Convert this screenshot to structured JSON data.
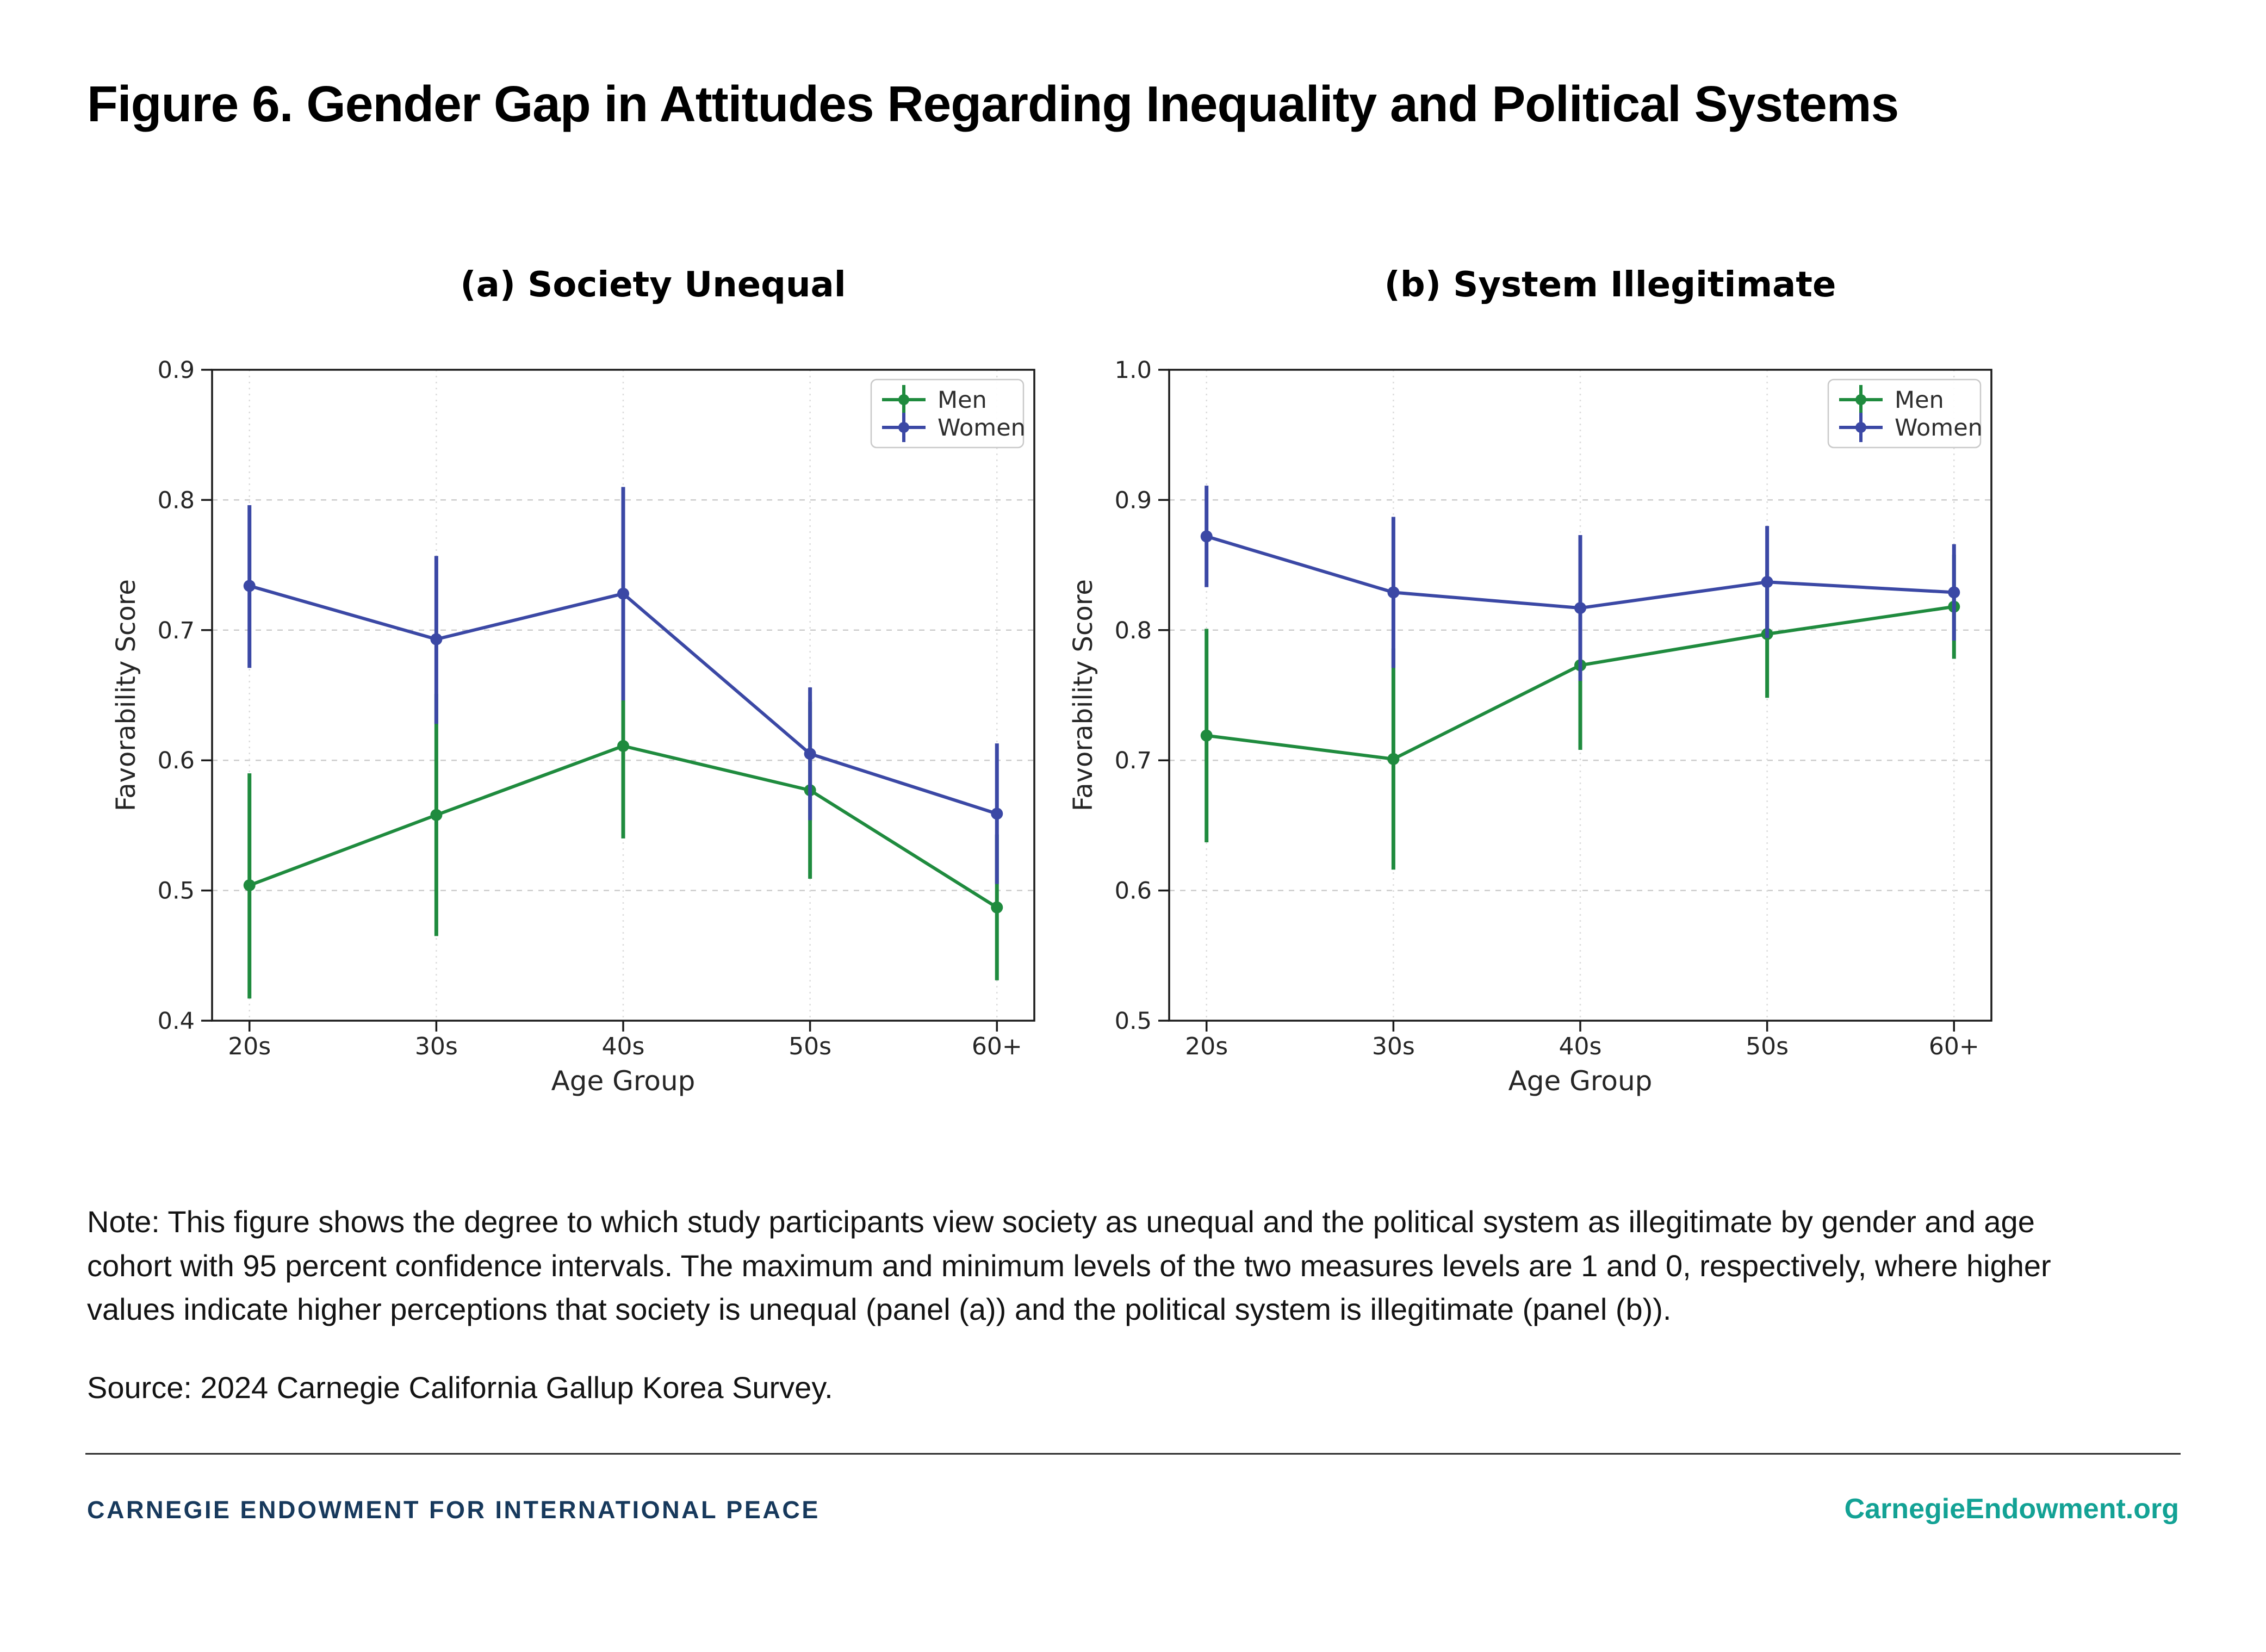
{
  "header": {
    "title": "Figure 6. Gender Gap in Attitudes Regarding Inequality and Political Systems"
  },
  "chart_data": [
    {
      "type": "line",
      "panel_label": "(a) Society Unequal",
      "xlabel": "Age Group",
      "ylabel": "Favorability Score",
      "ylim": [
        0.4,
        0.9
      ],
      "yticks": [
        0.4,
        0.5,
        0.6,
        0.7,
        0.8,
        0.9
      ],
      "categories": [
        "20s",
        "30s",
        "40s",
        "50s",
        "60+"
      ],
      "grid": true,
      "legend_position": "upper right",
      "series": [
        {
          "name": "Men",
          "color": "#1f8b3e",
          "values": [
            0.504,
            0.558,
            0.611,
            0.577,
            0.487
          ],
          "ci_low": [
            0.417,
            0.465,
            0.54,
            0.509,
            0.431
          ],
          "ci_high": [
            0.59,
            0.651,
            0.682,
            0.645,
            0.543
          ]
        },
        {
          "name": "Women",
          "color": "#3b48a5",
          "values": [
            0.734,
            0.693,
            0.728,
            0.605,
            0.559
          ],
          "ci_low": [
            0.671,
            0.628,
            0.646,
            0.554,
            0.505
          ],
          "ci_high": [
            0.796,
            0.757,
            0.81,
            0.656,
            0.613
          ]
        }
      ]
    },
    {
      "type": "line",
      "panel_label": "(b) System Illegitimate",
      "xlabel": "Age Group",
      "ylabel": "Favorability Score",
      "ylim": [
        0.5,
        1.0
      ],
      "yticks": [
        0.5,
        0.6,
        0.7,
        0.8,
        0.9,
        1.0
      ],
      "categories": [
        "20s",
        "30s",
        "40s",
        "50s",
        "60+"
      ],
      "grid": true,
      "legend_position": "upper right",
      "series": [
        {
          "name": "Men",
          "color": "#1f8b3e",
          "values": [
            0.719,
            0.701,
            0.773,
            0.797,
            0.818
          ],
          "ci_low": [
            0.637,
            0.616,
            0.708,
            0.748,
            0.778
          ],
          "ci_high": [
            0.801,
            0.786,
            0.838,
            0.846,
            0.858
          ]
        },
        {
          "name": "Women",
          "color": "#3b48a5",
          "values": [
            0.872,
            0.829,
            0.817,
            0.837,
            0.829
          ],
          "ci_low": [
            0.833,
            0.771,
            0.761,
            0.794,
            0.792
          ],
          "ci_high": [
            0.911,
            0.887,
            0.873,
            0.88,
            0.866
          ]
        }
      ]
    }
  ],
  "notes": {
    "note": "Note: This figure shows the degree to which study participants view society as unequal and the political system as illegitimate by gender and age cohort with 95 percent confidence intervals. The maximum and minimum levels of the two measures levels are 1 and 0, respectively, where higher values indicate higher perceptions that society is unequal (panel (a)) and the political system is illegitimate (panel (b)).",
    "source": "Source: 2024 Carnegie California Gallup Korea Survey."
  },
  "footer": {
    "org": "CARNEGIE ENDOWMENT FOR INTERNATIONAL PEACE",
    "site": "CarnegieEndowment.org"
  },
  "colors": {
    "men": "#1f8b3e",
    "women": "#3b48a5",
    "spine": "#1c1c1c",
    "tick_label": "#262626",
    "grid_h": "#cccccc",
    "grid_v": "#dcdcdc",
    "legend_border": "#c9c9c9",
    "footer_org": "#17395c",
    "footer_site": "#13a295",
    "divider": "#2e2e2e"
  }
}
